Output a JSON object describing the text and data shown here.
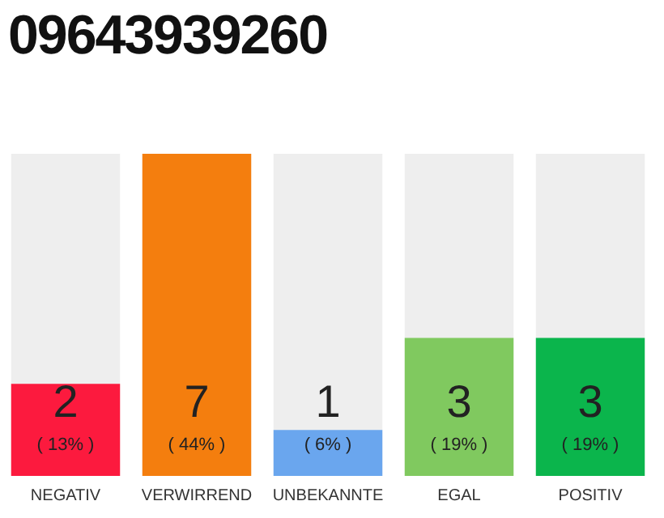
{
  "chart_data": {
    "type": "bar",
    "title": "09643939260",
    "categories": [
      "NEGATIV",
      "VERWIRREND",
      "UNBEKANNTE",
      "EGAL",
      "POSITIV"
    ],
    "values": [
      2,
      7,
      1,
      3,
      3
    ],
    "colors": [
      "#fc1a3e",
      "#f47e0e",
      "#6aa6ee",
      "#80c95f",
      "#0bb54c"
    ],
    "ylim": [
      0,
      7
    ],
    "tick_labels": "x",
    "grid": false,
    "legend": false,
    "data_labels": true,
    "annotations": [
      "( 13% )",
      "( 44% )",
      "( 6% )",
      "( 19% )",
      "( 19% )"
    ]
  }
}
